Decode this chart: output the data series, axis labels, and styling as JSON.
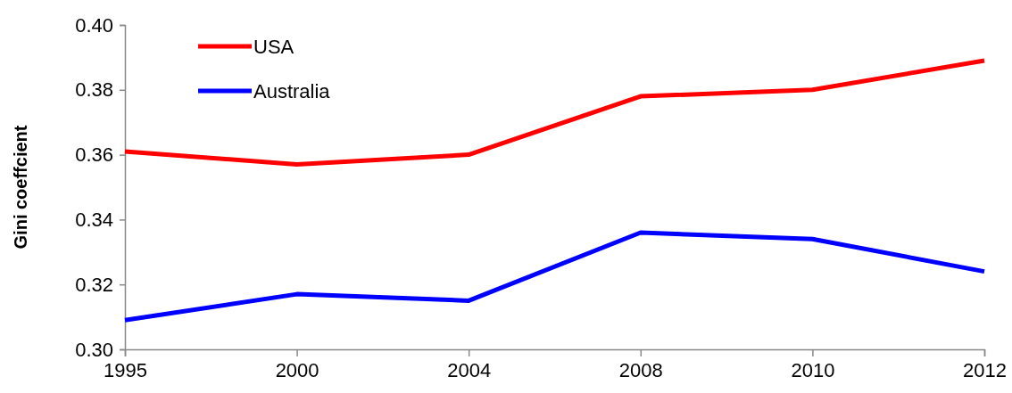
{
  "chart_data": {
    "type": "line",
    "ylabel": "Gini coeffcient",
    "categories": [
      "1995",
      "2000",
      "2004",
      "2008",
      "2010",
      "2012"
    ],
    "series": [
      {
        "name": "USA",
        "color": "#ff0000",
        "values": [
          0.361,
          0.357,
          0.36,
          0.378,
          0.38,
          0.389
        ]
      },
      {
        "name": "Australia",
        "color": "#0000ff",
        "values": [
          0.309,
          0.317,
          0.315,
          0.336,
          0.334,
          0.324
        ]
      }
    ],
    "ylim": [
      0.3,
      0.4
    ],
    "yticks": [
      {
        "value": 0.3,
        "label": "0.30"
      },
      {
        "value": 0.32,
        "label": "0.32"
      },
      {
        "value": 0.34,
        "label": "0.34"
      },
      {
        "value": 0.36,
        "label": "0.36"
      },
      {
        "value": 0.38,
        "label": "0.38"
      },
      {
        "value": 0.4,
        "label": "0.40"
      }
    ],
    "grid": false,
    "legend": "top left",
    "marker": "none",
    "line_style": "solid"
  }
}
